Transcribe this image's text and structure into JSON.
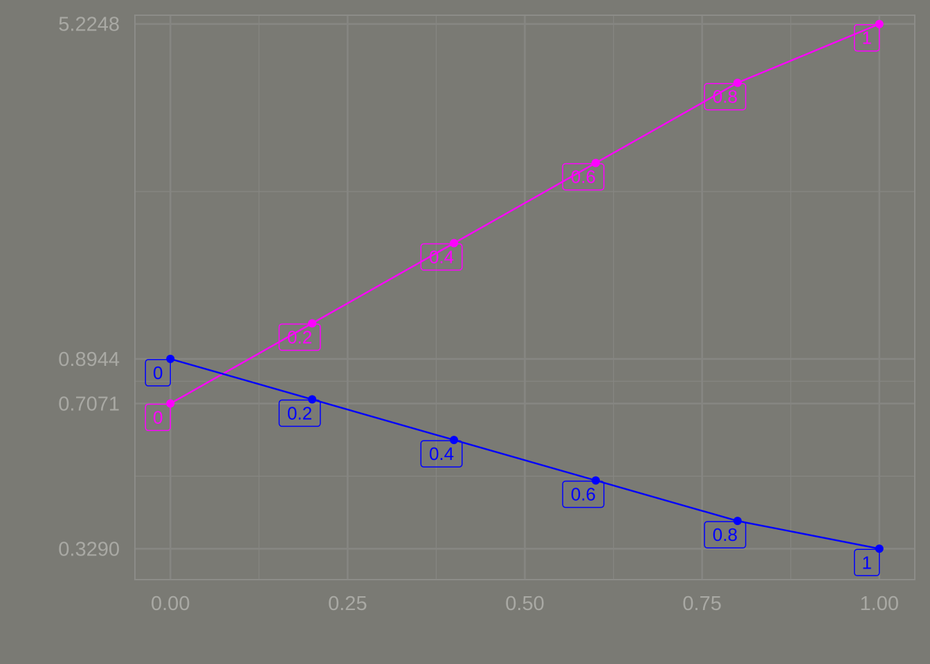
{
  "chart_data": {
    "type": "line",
    "title": "",
    "xlabel": "",
    "ylabel": "",
    "xlim": [
      -0.05,
      1.05
    ],
    "ylim": [
      0.2795,
      5.4726
    ],
    "y_scale": "log",
    "grid": true,
    "legend": "none",
    "background_color": "#7a7a74",
    "panel_border_color": "#8c8c88",
    "gridline_color": "#868682",
    "tick_label_color": "#a9a9a4",
    "x_ticks": [
      0,
      0.25,
      0.5,
      0.75,
      1
    ],
    "x_tick_labels": [
      "0.00",
      "0.25",
      "0.50",
      "0.75",
      "1.00"
    ],
    "x_minor_ticks": [
      0.125,
      0.375,
      0.625,
      0.875
    ],
    "y_ticks": [
      0.329,
      0.7071,
      0.8944,
      5.2248
    ],
    "y_tick_labels": [
      "0.3290",
      "0.7071",
      "0.8944",
      "5.2248"
    ],
    "y_minor_ticks": [
      0.482,
      0.795,
      2.16
    ],
    "series": [
      {
        "color": "#ff00ff",
        "x": [
          0,
          0.2,
          0.4,
          0.6,
          0.8,
          1.0
        ],
        "values": [
          0.7071,
          1.0789,
          1.6463,
          2.5121,
          3.8329,
          5.2248
        ],
        "point_labels": [
          "0",
          "0.2",
          "0.4",
          "0.6",
          "0.8",
          "1"
        ]
      },
      {
        "color": "#0000ff",
        "x": [
          0,
          0.2,
          0.4,
          0.6,
          0.8,
          1.0
        ],
        "values": [
          0.8944,
          0.7226,
          0.5835,
          0.4714,
          0.3808,
          0.329
        ],
        "point_labels": [
          "0",
          "0.2",
          "0.4",
          "0.6",
          "0.8",
          "1"
        ]
      }
    ]
  }
}
